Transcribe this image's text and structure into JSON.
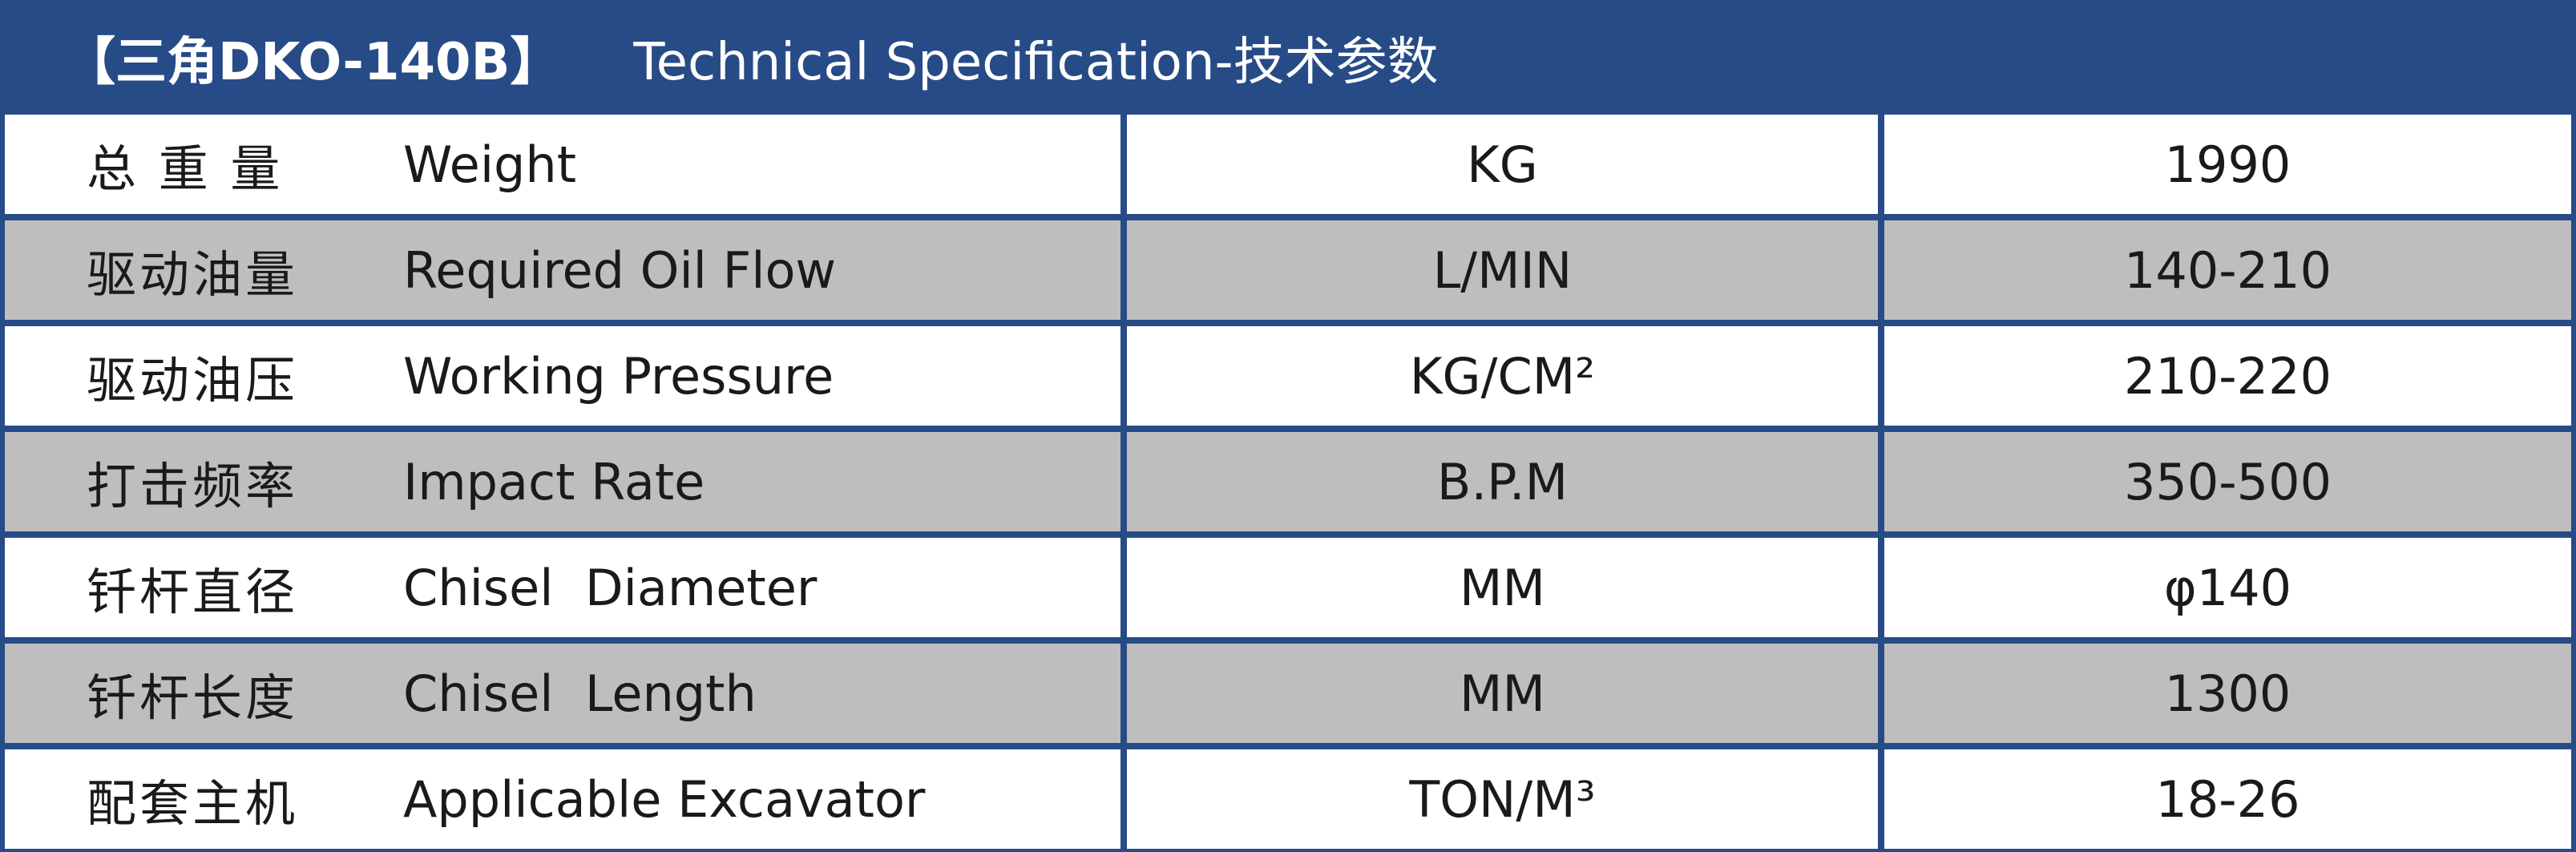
{
  "header": {
    "model": "【三角DKO-140B】",
    "title": "Technical Specification-技术参数"
  },
  "colors": {
    "frame": "#274b87",
    "alt_row": "#bfbebe",
    "row": "#ffffff"
  },
  "rows": [
    {
      "zh": "总 重 量",
      "en": "Weight",
      "unit": "KG",
      "value": "1990"
    },
    {
      "zh": "驱动油量",
      "en": "Required Oil Flow",
      "unit": "L/MIN",
      "value": "140-210"
    },
    {
      "zh": "驱动油压",
      "en": "Working Pressure",
      "unit": "KG/CM²",
      "value": "210-220"
    },
    {
      "zh": "打击频率",
      "en": "Impact Rate",
      "unit": "B.P.M",
      "value": "350-500"
    },
    {
      "zh": "钎杆直径",
      "en": "Chisel  Diameter",
      "unit": "MM",
      "value": "φ140"
    },
    {
      "zh": "钎杆长度",
      "en": "Chisel  Length",
      "unit": "MM",
      "value": "1300"
    },
    {
      "zh": "配套主机",
      "en": "Applicable Excavator",
      "unit": "TON/M³",
      "value": "18-26"
    }
  ]
}
